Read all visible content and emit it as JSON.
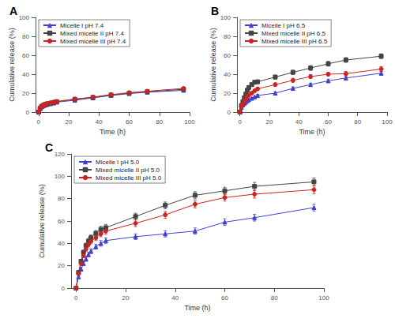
{
  "chart_data": [
    {
      "type": "line",
      "title": "A",
      "x": [
        0,
        1,
        2,
        3,
        4,
        5,
        6,
        8,
        10,
        12,
        24,
        36,
        48,
        60,
        72,
        96
      ],
      "xlim": [
        -2,
        100
      ],
      "xticks": [
        0,
        20,
        40,
        60,
        80,
        100
      ],
      "ylim": [
        0,
        100
      ],
      "yticks": [
        0,
        20,
        40,
        60,
        80,
        100
      ],
      "xlabel": "Time (h)",
      "ylabel": "Cumulative release (%)",
      "legend": "upper left",
      "grid": false,
      "series": [
        {
          "name": "Micelle I pH 7.4",
          "color": "#4040cc",
          "marker": "triangle",
          "values": [
            0,
            3.5,
            5.5,
            6.5,
            7.2,
            7.8,
            8.2,
            8.8,
            9.5,
            10.5,
            12.5,
            15.0,
            17.5,
            19.5,
            21.0,
            23.0
          ],
          "errors": [
            0,
            0.4,
            0.5,
            0.5,
            0.5,
            0.5,
            0.5,
            0.5,
            0.5,
            0.5,
            0.6,
            0.7,
            0.8,
            0.8,
            0.9,
            1.0
          ]
        },
        {
          "name": "Mixed micelle II pH 7.4",
          "color": "#444444",
          "marker": "square",
          "values": [
            0,
            4.0,
            6.0,
            7.0,
            7.8,
            8.4,
            8.8,
            9.5,
            10.2,
            11.0,
            13.5,
            15.5,
            18.0,
            20.0,
            21.5,
            24.0
          ],
          "errors": [
            0,
            0.4,
            0.5,
            0.5,
            0.5,
            0.5,
            0.5,
            0.5,
            0.5,
            0.5,
            0.6,
            0.7,
            0.8,
            0.8,
            0.9,
            1.0
          ]
        },
        {
          "name": "Mixed micelle III pH 7.4",
          "color": "#cc2222",
          "marker": "circle",
          "values": [
            0,
            4.2,
            6.2,
            7.2,
            8.0,
            8.6,
            9.0,
            9.8,
            10.5,
            11.2,
            13.8,
            15.8,
            18.5,
            20.5,
            22.0,
            25.0
          ],
          "errors": [
            0,
            0.4,
            0.5,
            0.5,
            0.5,
            0.5,
            0.5,
            0.5,
            0.5,
            0.5,
            0.6,
            0.7,
            0.8,
            0.8,
            0.9,
            1.0
          ]
        }
      ]
    },
    {
      "type": "line",
      "title": "B",
      "x": [
        0,
        1,
        2,
        3,
        4,
        5,
        6,
        8,
        10,
        12,
        24,
        36,
        48,
        60,
        72,
        96
      ],
      "xlim": [
        -2,
        100
      ],
      "xticks": [
        0,
        20,
        40,
        60,
        80,
        100
      ],
      "ylim": [
        0,
        100
      ],
      "yticks": [
        0,
        20,
        40,
        60,
        80,
        100
      ],
      "xlabel": "Time (h)",
      "ylabel": "Cumulative release (%)",
      "legend": "upper left",
      "grid": false,
      "series": [
        {
          "name": "Micelle I pH 6.5",
          "color": "#4040cc",
          "marker": "triangle",
          "values": [
            0,
            5.0,
            7.5,
            9.0,
            10.5,
            12.0,
            13.0,
            14.5,
            16.0,
            17.5,
            20.0,
            25.0,
            29.0,
            33.0,
            36.0,
            41.0
          ],
          "errors": [
            0,
            0.6,
            0.7,
            0.8,
            0.8,
            0.9,
            1.0,
            1.0,
            1.0,
            1.2,
            1.5,
            1.5,
            1.5,
            1.8,
            2.0,
            2.0
          ]
        },
        {
          "name": "Mixed micelle II pH 6.5",
          "color": "#444444",
          "marker": "square",
          "values": [
            0,
            7.0,
            11.0,
            15.0,
            19.0,
            23.0,
            26.0,
            29.0,
            31.5,
            32.0,
            37.0,
            42.0,
            46.5,
            51.0,
            55.0,
            59.0
          ],
          "errors": [
            0,
            0.7,
            0.9,
            1.0,
            1.2,
            1.3,
            1.5,
            1.5,
            1.5,
            1.8,
            2.0,
            2.2,
            2.5,
            2.5,
            2.5,
            2.5
          ]
        },
        {
          "name": "Mixed micelle III pH 6.5",
          "color": "#cc2222",
          "marker": "circle",
          "values": [
            0,
            5.5,
            8.5,
            11.0,
            13.5,
            16.0,
            18.0,
            20.0,
            22.5,
            24.5,
            29.0,
            33.5,
            37.5,
            40.0,
            40.5,
            45.5
          ],
          "errors": [
            0,
            0.6,
            0.7,
            0.8,
            0.9,
            1.0,
            1.2,
            1.2,
            1.2,
            1.5,
            1.8,
            2.0,
            2.0,
            2.0,
            2.2,
            2.5
          ]
        }
      ]
    },
    {
      "type": "line",
      "title": "C",
      "x": [
        0,
        1,
        2,
        3,
        4,
        5,
        6,
        8,
        10,
        12,
        24,
        36,
        48,
        60,
        72,
        96
      ],
      "xlim": [
        -2,
        100
      ],
      "xticks": [
        0,
        20,
        40,
        60,
        80,
        100
      ],
      "ylim": [
        0,
        120
      ],
      "yticks": [
        0,
        20,
        40,
        60,
        80,
        100,
        120
      ],
      "xlabel": "Time (h)",
      "ylabel": "Cumulative release (%)",
      "legend": "upper left",
      "grid": false,
      "series": [
        {
          "name": "Micelle I pH 5.0",
          "color": "#4040cc",
          "marker": "triangle",
          "values": [
            0,
            10.0,
            17.0,
            22.0,
            26.0,
            30.0,
            33.0,
            37.0,
            40.0,
            42.5,
            46.0,
            48.5,
            51.0,
            59.0,
            63.0,
            72.0
          ],
          "errors": [
            0,
            1.0,
            1.5,
            1.8,
            2.0,
            2.0,
            2.2,
            2.2,
            2.5,
            2.5,
            2.5,
            2.8,
            2.8,
            3.0,
            3.0,
            3.0
          ]
        },
        {
          "name": "Mixed micelle II pH 5.0",
          "color": "#444444",
          "marker": "square",
          "values": [
            0,
            14.0,
            24.0,
            32.0,
            38.0,
            42.0,
            45.0,
            49.0,
            52.5,
            54.0,
            64.0,
            74.0,
            83.0,
            87.0,
            91.0,
            95.0
          ],
          "errors": [
            0,
            1.2,
            1.8,
            2.0,
            2.2,
            2.5,
            2.5,
            2.5,
            2.8,
            3.0,
            3.0,
            3.0,
            3.2,
            3.2,
            3.5,
            3.5
          ]
        },
        {
          "name": "Mixed micelle III pH 5.0",
          "color": "#cc2222",
          "marker": "circle",
          "values": [
            0,
            13.0,
            22.0,
            29.0,
            35.0,
            39.0,
            42.0,
            45.0,
            48.5,
            51.0,
            58.0,
            65.5,
            75.0,
            81.0,
            84.0,
            88.0
          ],
          "errors": [
            0,
            1.0,
            1.5,
            1.8,
            2.0,
            2.2,
            2.2,
            2.5,
            2.5,
            2.8,
            3.0,
            3.0,
            3.2,
            3.2,
            3.5,
            3.5
          ]
        }
      ]
    }
  ]
}
